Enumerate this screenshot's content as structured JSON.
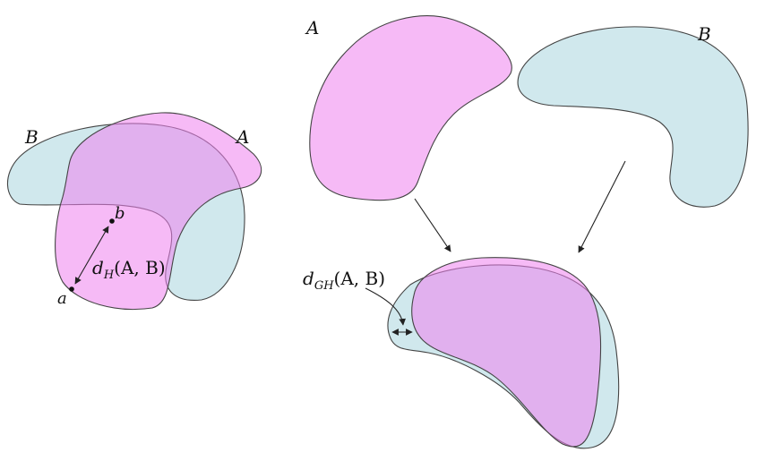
{
  "colors": {
    "set_A": "#ee82ee",
    "set_B": "#a9d5df",
    "outline": "#444444"
  },
  "labels": {
    "left_B": "B",
    "left_A": "A",
    "point_b": "b",
    "point_a": "a",
    "hausdorff_prefix": "d",
    "hausdorff_sub": "H",
    "hausdorff_args": "(A, B)",
    "top_A": "A",
    "top_B": "B",
    "gh_prefix": "d",
    "gh_sub": "GH",
    "gh_args": "(A, B)"
  }
}
